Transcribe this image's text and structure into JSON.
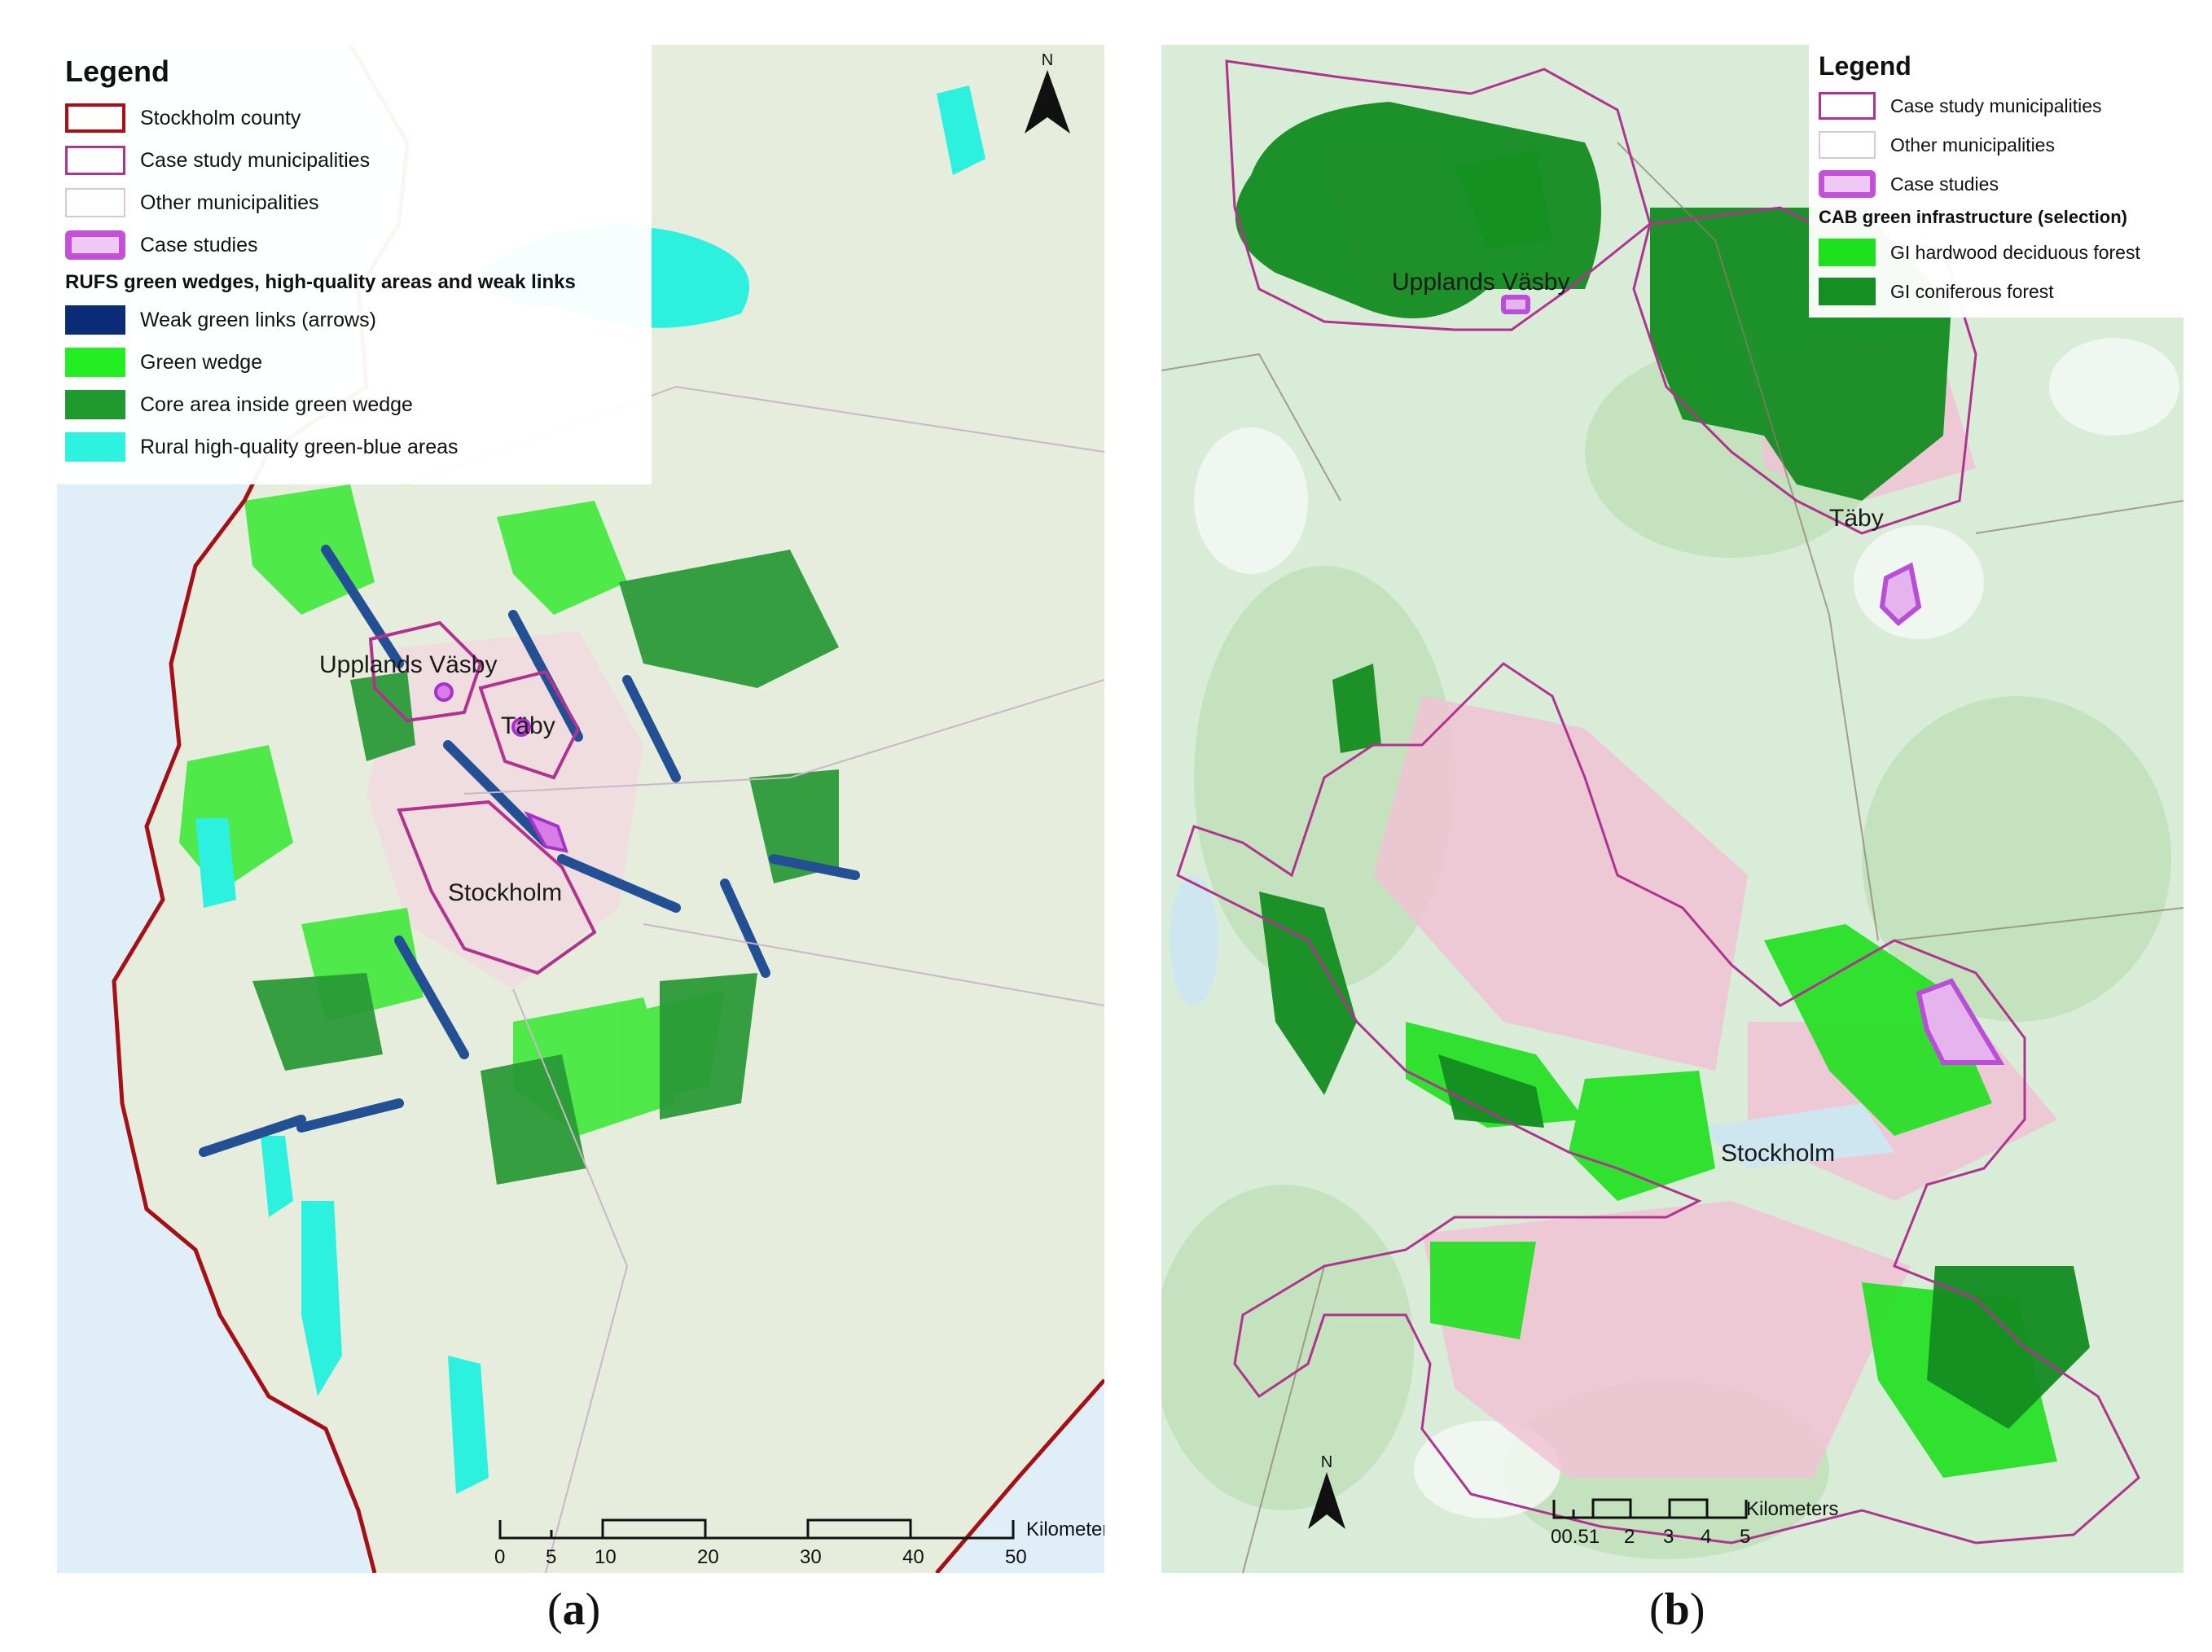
{
  "panels": {
    "a": {
      "legend": {
        "title": "Legend",
        "items": [
          {
            "label": "Stockholm county",
            "swatch": "outline",
            "color": "#a50f15"
          },
          {
            "label": "Case study municipalities",
            "swatch": "outline",
            "color": "#b0338f"
          },
          {
            "label": "Other municipalities",
            "swatch": "outline",
            "color": "#d9c6d6"
          },
          {
            "label": "Case studies",
            "swatch": "thick-outline",
            "color": "#c44fd8",
            "fill": "#f0c8f4"
          }
        ],
        "subheading": "RUFS green wedges, high-quality areas and weak links",
        "subitems": [
          {
            "label": "Weak green links (arrows)",
            "color": "#0c2c78"
          },
          {
            "label": "Green wedge",
            "color": "#22ee22"
          },
          {
            "label": "Core area inside green wedge",
            "color": "#1f9a2e"
          },
          {
            "label": "Rural high-quality green-blue areas",
            "color": "#2ef2e0"
          }
        ]
      },
      "places": [
        "Upplands Väsby",
        "Täby",
        "Stockholm"
      ],
      "north_label": "N",
      "scale": {
        "ticks": [
          "0",
          "5",
          "10",
          "20",
          "30",
          "40",
          "50"
        ],
        "unit": "Kilometers"
      },
      "caption": {
        "letter": "a"
      }
    },
    "b": {
      "legend": {
        "title": "Legend",
        "items": [
          {
            "label": "Case study municipalities",
            "swatch": "outline",
            "color": "#b0338f"
          },
          {
            "label": "Other municipalities",
            "swatch": "outline",
            "color": "#d9c6d6"
          },
          {
            "label": "Case studies",
            "swatch": "thick-outline",
            "color": "#c44fd8",
            "fill": "#f0c8f4"
          }
        ],
        "subheading": "CAB green infrastructure (selection)",
        "subitems": [
          {
            "label": "GI hardwood deciduous forest",
            "color": "#1ee01e"
          },
          {
            "label": "GI coniferous forest",
            "color": "#158e22"
          }
        ]
      },
      "places": [
        "Upplands Väsby",
        "Täby",
        "Stockholm"
      ],
      "north_label": "N",
      "scale": {
        "ticks": [
          "00.51",
          "2",
          "3",
          "4",
          "5"
        ],
        "unit": "Kilometers"
      },
      "caption": {
        "letter": "b"
      }
    }
  }
}
